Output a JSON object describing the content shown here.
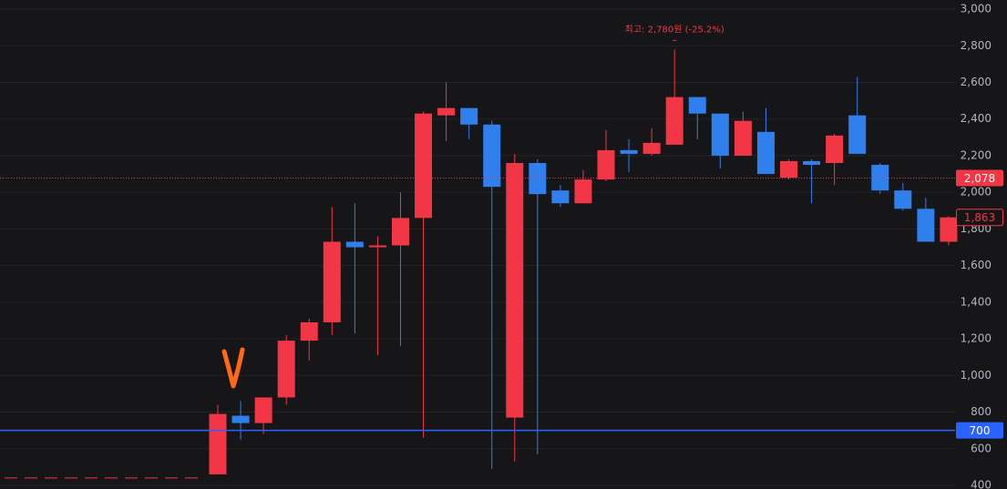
{
  "chart_data": {
    "type": "candlestick",
    "categories": [
      null,
      null,
      null,
      null,
      null,
      null,
      null,
      null,
      null,
      null,
      null,
      null,
      null,
      null,
      null,
      null,
      null,
      null,
      null,
      null,
      null,
      null,
      null,
      null,
      null,
      null,
      null,
      null,
      null,
      null,
      null,
      null,
      null
    ],
    "open": [
      460,
      780,
      740,
      880,
      1190,
      1290,
      1730,
      1700,
      1710,
      1860,
      2420,
      2460,
      2370,
      770,
      2160,
      2010,
      1940,
      2070,
      2230,
      2210,
      2260,
      2520,
      2430,
      2200,
      2330,
      2080,
      2170,
      2160,
      2420,
      2150,
      2010,
      1910,
      1730
    ],
    "high": [
      840,
      860,
      880,
      1220,
      1310,
      1920,
      1940,
      1760,
      2000,
      2440,
      2600,
      2460,
      2390,
      2210,
      2180,
      2040,
      2120,
      2340,
      2290,
      2350,
      2780,
      2520,
      2430,
      2440,
      2460,
      2180,
      2180,
      2320,
      2630,
      2160,
      2050,
      1970,
      1870
    ],
    "low": [
      460,
      650,
      680,
      840,
      1080,
      1220,
      1230,
      1110,
      1160,
      660,
      2280,
      2290,
      490,
      530,
      570,
      1920,
      1940,
      2060,
      2110,
      2200,
      2260,
      2290,
      2130,
      2200,
      2100,
      2070,
      1940,
      2040,
      2210,
      1990,
      1900,
      1730,
      1710
    ],
    "close": [
      790,
      740,
      880,
      1190,
      1290,
      1730,
      1700,
      1710,
      1860,
      2430,
      2460,
      2370,
      2030,
      2160,
      1990,
      1940,
      2070,
      2230,
      2210,
      2270,
      2520,
      2430,
      2200,
      2390,
      2100,
      2170,
      2150,
      2310,
      2210,
      2010,
      1910,
      1730,
      1863
    ],
    "up_color": "#f23645",
    "down_color": "#2f80ed",
    "ylim": [
      380,
      3050
    ],
    "yticks": [
      400,
      600,
      800,
      {
        "value": 1000,
        "label": "1,000"
      },
      {
        "value": 1200,
        "label": "1,200"
      },
      {
        "value": 1400,
        "label": "1,400"
      },
      {
        "value": 1600,
        "label": "1,600"
      },
      {
        "value": 1800,
        "label": "1,800"
      },
      {
        "value": 2000,
        "label": "2,000"
      },
      {
        "value": 2200,
        "label": "2,200"
      },
      {
        "value": 2400,
        "label": "2,400"
      },
      {
        "value": 2600,
        "label": "2,600"
      },
      {
        "value": 2800,
        "label": "2,800"
      },
      {
        "value": 3000,
        "label": "3,000"
      }
    ],
    "grid": true,
    "price_lines": [
      {
        "value": 2078,
        "label": "2,078",
        "color": "#f23645",
        "style": "dotted"
      },
      {
        "value": 700,
        "label": "700",
        "color": "#2962ff",
        "style": "solid"
      }
    ],
    "last_close_label": "1,863",
    "dashed_level": 440,
    "annotation": {
      "text": "최고: 2,780원 (-25.2%)",
      "index": 20
    }
  }
}
